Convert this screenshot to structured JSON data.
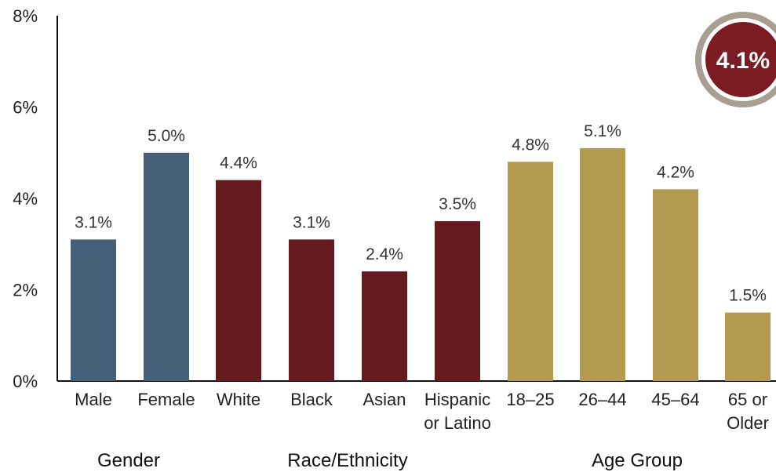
{
  "chart_data": {
    "type": "bar",
    "ylim": [
      0,
      8
    ],
    "y_ticks": [
      "0%",
      "2%",
      "4%",
      "6%",
      "8%"
    ],
    "y_tick_values": [
      0,
      2,
      4,
      6,
      8
    ],
    "grid": false,
    "categories": [
      [
        "Male"
      ],
      [
        "Female"
      ],
      [
        "White"
      ],
      [
        "Black"
      ],
      [
        "Asian"
      ],
      [
        "Hispanic",
        "or Latino"
      ],
      [
        "18–25"
      ],
      [
        "26–44"
      ],
      [
        "45–64"
      ],
      [
        "65 or",
        "Older"
      ]
    ],
    "values": [
      3.1,
      5.0,
      4.4,
      3.1,
      2.4,
      3.5,
      4.8,
      5.1,
      4.2,
      1.5
    ],
    "value_labels": [
      "3.1%",
      "5.0%",
      "4.4%",
      "3.1%",
      "2.4%",
      "3.5%",
      "4.8%",
      "5.1%",
      "4.2%",
      "1.5%"
    ],
    "groups": [
      {
        "label": "Gender",
        "indices": [
          0,
          1
        ],
        "color": "#465f78"
      },
      {
        "label": "Race/Ethnicity",
        "indices": [
          2,
          3,
          4,
          5
        ],
        "color": "#641a1e"
      },
      {
        "label": "Age Group",
        "indices": [
          6,
          7,
          8,
          9
        ],
        "color": "#b49950"
      }
    ],
    "overall": {
      "label": "4.1%",
      "color": "#7a1c22",
      "ring_color": "#a89f92"
    }
  }
}
